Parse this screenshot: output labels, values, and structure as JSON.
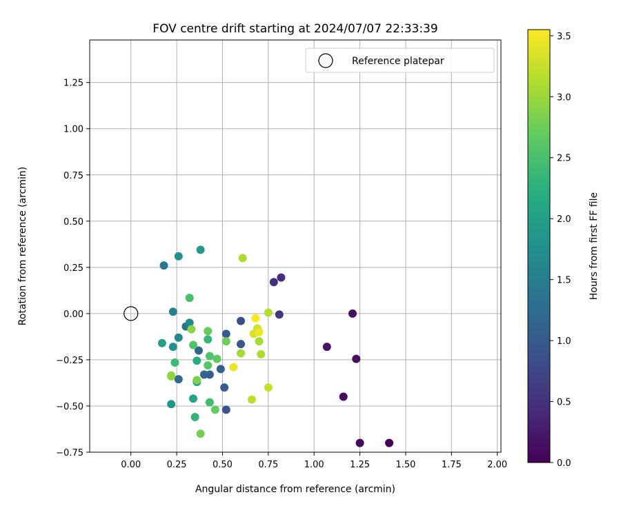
{
  "chart_data": {
    "type": "scatter",
    "title": "FOV centre drift starting at 2024/07/07 22:33:39",
    "xlabel": "Angular distance from reference (arcmin)",
    "ylabel": "Rotation from reference (arcmin)",
    "xlim": [
      -0.225,
      2.02
    ],
    "ylim": [
      -0.75,
      1.48
    ],
    "x_ticks": [
      0.0,
      0.25,
      0.5,
      0.75,
      1.0,
      1.25,
      1.5,
      1.75,
      2.0
    ],
    "x_tick_labels": [
      "0.00",
      "0.25",
      "0.50",
      "0.75",
      "1.00",
      "1.25",
      "1.50",
      "1.75",
      "2.00"
    ],
    "y_ticks": [
      -0.75,
      -0.5,
      -0.25,
      0.0,
      0.25,
      0.5,
      0.75,
      1.0,
      1.25
    ],
    "y_tick_labels": [
      "−0.75",
      "−0.50",
      "−0.25",
      "0.00",
      "0.25",
      "0.50",
      "0.75",
      "1.00",
      "1.25"
    ],
    "grid": true,
    "colormap": "viridis",
    "colorbar": {
      "label": "Hours from first FF file",
      "range": [
        0.0,
        3.55
      ],
      "ticks": [
        0.0,
        0.5,
        1.0,
        1.5,
        2.0,
        2.5,
        3.0,
        3.5
      ],
      "tick_labels": [
        "0.0",
        "0.5",
        "1.0",
        "1.5",
        "2.0",
        "2.5",
        "3.0",
        "3.5"
      ]
    },
    "legend": {
      "placement": "top-right",
      "entries": [
        {
          "label": "Reference platepar",
          "marker": "open-circle"
        }
      ]
    },
    "reference_point": {
      "x": 0.0,
      "y": 0.0
    },
    "points": [
      {
        "x": 1.41,
        "y": -0.7,
        "hours": 0.0
      },
      {
        "x": 1.25,
        "y": -0.7,
        "hours": 0.05
      },
      {
        "x": 1.16,
        "y": -0.45,
        "hours": 0.1
      },
      {
        "x": 1.23,
        "y": -0.245,
        "hours": 0.13
      },
      {
        "x": 1.21,
        "y": 0.0,
        "hours": 0.15
      },
      {
        "x": 1.07,
        "y": -0.18,
        "hours": 0.2
      },
      {
        "x": 0.82,
        "y": 0.195,
        "hours": 0.45
      },
      {
        "x": 0.78,
        "y": 0.17,
        "hours": 0.48
      },
      {
        "x": 0.81,
        "y": -0.005,
        "hours": 0.55
      },
      {
        "x": 0.6,
        "y": -0.04,
        "hours": 0.85
      },
      {
        "x": 0.6,
        "y": -0.165,
        "hours": 0.95
      },
      {
        "x": 0.52,
        "y": -0.52,
        "hours": 0.9
      },
      {
        "x": 0.52,
        "y": -0.11,
        "hours": 1.0
      },
      {
        "x": 0.51,
        "y": -0.4,
        "hours": 1.05
      },
      {
        "x": 0.49,
        "y": -0.3,
        "hours": 1.1
      },
      {
        "x": 0.43,
        "y": -0.33,
        "hours": 1.05
      },
      {
        "x": 0.4,
        "y": -0.33,
        "hours": 1.15
      },
      {
        "x": 0.37,
        "y": -0.2,
        "hours": 1.15
      },
      {
        "x": 0.26,
        "y": -0.355,
        "hours": 1.2
      },
      {
        "x": 0.3,
        "y": -0.07,
        "hours": 1.35
      },
      {
        "x": 0.18,
        "y": 0.26,
        "hours": 1.4
      },
      {
        "x": 0.23,
        "y": 0.01,
        "hours": 1.55
      },
      {
        "x": 0.26,
        "y": -0.13,
        "hours": 1.65
      },
      {
        "x": 0.32,
        "y": -0.05,
        "hours": 1.7
      },
      {
        "x": 0.26,
        "y": 0.31,
        "hours": 1.8
      },
      {
        "x": 0.23,
        "y": -0.18,
        "hours": 1.8
      },
      {
        "x": 0.22,
        "y": -0.49,
        "hours": 1.85
      },
      {
        "x": 0.38,
        "y": 0.345,
        "hours": 1.9
      },
      {
        "x": 0.17,
        "y": -0.16,
        "hours": 2.0
      },
      {
        "x": 0.34,
        "y": -0.46,
        "hours": 2.05
      },
      {
        "x": 0.36,
        "y": -0.37,
        "hours": 2.1
      },
      {
        "x": 0.36,
        "y": -0.255,
        "hours": 2.2
      },
      {
        "x": 0.35,
        "y": -0.56,
        "hours": 2.3
      },
      {
        "x": 0.42,
        "y": -0.14,
        "hours": 2.35
      },
      {
        "x": 0.24,
        "y": -0.265,
        "hours": 2.4
      },
      {
        "x": 0.43,
        "y": -0.48,
        "hours": 2.45
      },
      {
        "x": 0.32,
        "y": 0.085,
        "hours": 2.5
      },
      {
        "x": 0.34,
        "y": -0.17,
        "hours": 2.55
      },
      {
        "x": 0.43,
        "y": -0.23,
        "hours": 2.55
      },
      {
        "x": 0.42,
        "y": -0.28,
        "hours": 2.6
      },
      {
        "x": 0.47,
        "y": -0.245,
        "hours": 2.65
      },
      {
        "x": 0.46,
        "y": -0.52,
        "hours": 2.7
      },
      {
        "x": 0.42,
        "y": -0.095,
        "hours": 2.7
      },
      {
        "x": 0.52,
        "y": -0.15,
        "hours": 2.75
      },
      {
        "x": 0.38,
        "y": -0.65,
        "hours": 2.8
      },
      {
        "x": 0.36,
        "y": -0.36,
        "hours": 2.85
      },
      {
        "x": 0.22,
        "y": -0.335,
        "hours": 2.9
      },
      {
        "x": 0.33,
        "y": -0.085,
        "hours": 2.9
      },
      {
        "x": 0.22,
        "y": -0.34,
        "hours": 2.95
      },
      {
        "x": 0.6,
        "y": -0.215,
        "hours": 3.05
      },
      {
        "x": 0.7,
        "y": -0.15,
        "hours": 3.05
      },
      {
        "x": 0.71,
        "y": -0.22,
        "hours": 3.1
      },
      {
        "x": 0.61,
        "y": 0.3,
        "hours": 3.1
      },
      {
        "x": 0.75,
        "y": 0.005,
        "hours": 3.15
      },
      {
        "x": 0.66,
        "y": -0.465,
        "hours": 3.2
      },
      {
        "x": 0.75,
        "y": -0.4,
        "hours": 3.25
      },
      {
        "x": 0.69,
        "y": -0.08,
        "hours": 3.3
      },
      {
        "x": 0.67,
        "y": -0.11,
        "hours": 3.35
      },
      {
        "x": 0.7,
        "y": -0.1,
        "hours": 3.45
      },
      {
        "x": 0.56,
        "y": -0.29,
        "hours": 3.45
      },
      {
        "x": 0.68,
        "y": -0.025,
        "hours": 3.55
      }
    ]
  }
}
